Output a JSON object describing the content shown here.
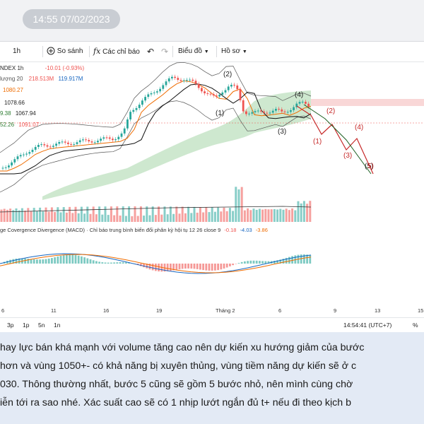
{
  "timestamp_badge": "14:55 07/02/2023",
  "toolbar": {
    "interval": "1h",
    "compare_label": "So sánh",
    "indicators_label": "Các chỉ báo",
    "chart_type_label": "Biểu đồ",
    "profile_label": "Hồ sơ"
  },
  "legend": {
    "symbol": "NDEX  1h",
    "change": "-10.01 (-0.93%)",
    "volume_label": "lượng 20",
    "volume_val1": "218.513M",
    "volume_val2": "119.917M",
    "line2": "1080.27",
    "line3": "1078.66",
    "line4a": "9.38",
    "line4b": "1067.94",
    "line5a": "52.26",
    "line5b": "1091.07"
  },
  "wave_labels": {
    "w2_top": "(2)",
    "w1_left": "(1)",
    "w4_top": "(4)",
    "w3_mid": "(3)",
    "w2_right": "(2)",
    "w1_right": "(1)",
    "w4_right": "(4)",
    "w3_right": "(3)",
    "w5_right": "(5)"
  },
  "macd": {
    "label": "ge Covergence Divergence (MACD) · Chỉ báo trung bình biến đổi phân kỳ hội tụ 12 26 close 9",
    "v1": "-0.18",
    "v2": "-4.03",
    "v3": "-3.86"
  },
  "xaxis_ticks": [
    {
      "label": "6",
      "x": 2
    },
    {
      "label": "11",
      "x": 72
    },
    {
      "label": "16",
      "x": 146
    },
    {
      "label": "19",
      "x": 221
    },
    {
      "label": "Tháng 2",
      "x": 305
    },
    {
      "label": "6",
      "x": 394
    },
    {
      "label": "9",
      "x": 472
    },
    {
      "label": "13",
      "x": 530
    },
    {
      "label": "15",
      "x": 591
    }
  ],
  "bottombar": {
    "ranges": [
      "3p",
      "1p",
      "5n",
      "1n"
    ],
    "clock": "14:54:41 (UTC+7)",
    "zoom": "%"
  },
  "text_lines": [
    "hay lực bán khá mạnh với volume tăng cao nên dự kiến xu hướng giảm của bước",
    "hơn và vùng 1050+- có khả năng bị xuyên thủng, vùng tiềm năng dự kiến sẽ ở c",
    "030. Thông thường nhất, bước 5 cũng sẽ gồm 5 bước nhỏ, nên mình cùng chờ",
    "iễn tới ra sao nhé. Xác suất cao sẽ có 1 nhịp lướt ngắn đủ t+ nếu đi theo kịch b"
  ],
  "colors": {
    "up": "#26a69a",
    "down": "#ef5350",
    "cloud": "#a5d6a7",
    "panel_bg": "#e3eaf5",
    "badge_bg": "#c9cdd3"
  }
}
